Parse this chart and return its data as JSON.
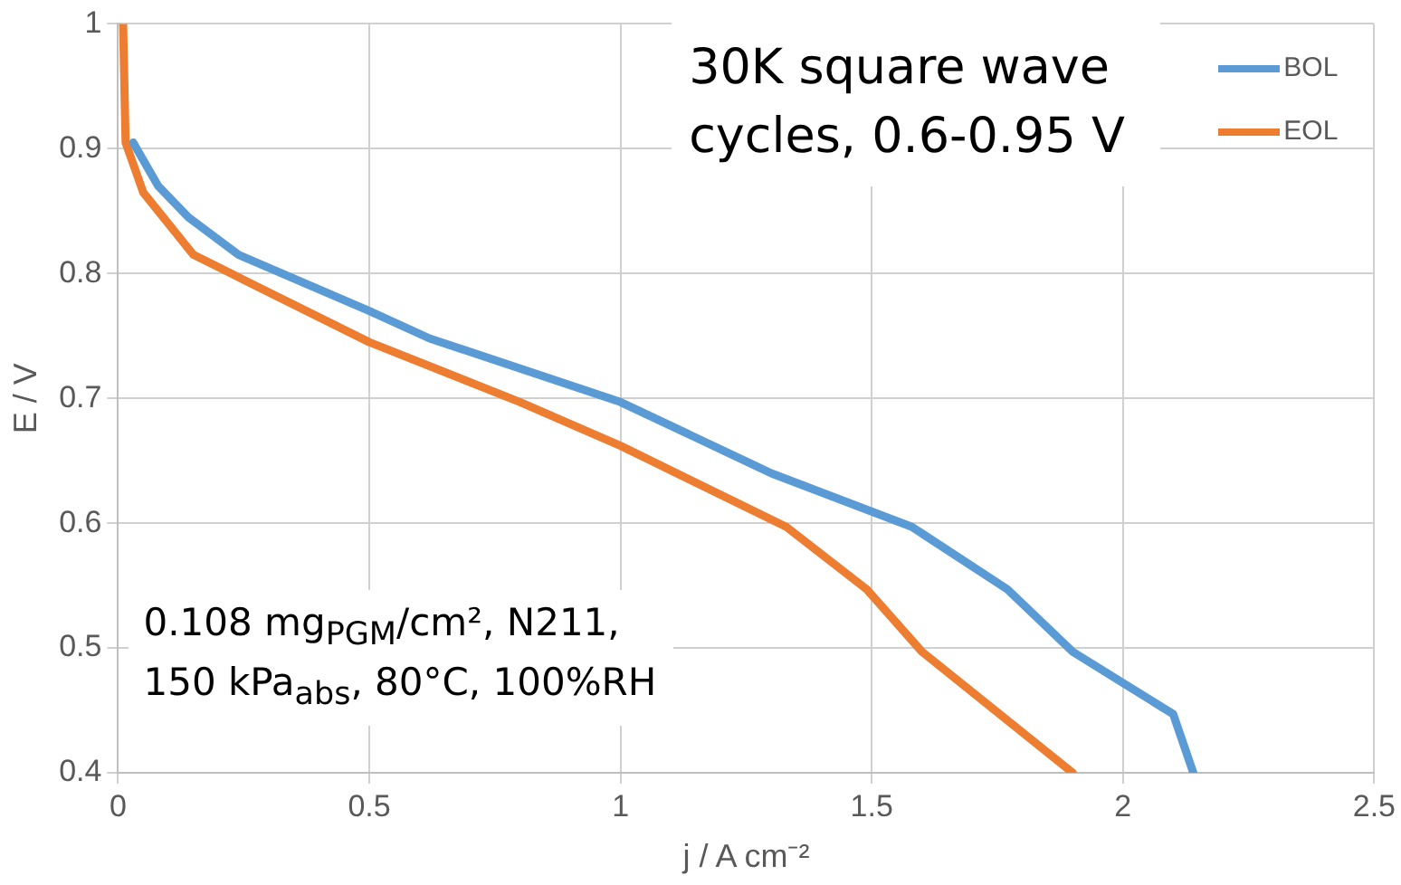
{
  "chart_data": {
    "type": "line",
    "xlabel": "j / A cm⁻²",
    "ylabel": "E / V",
    "annotations": [
      "30K square wave cycles, 0.6-0.95 V",
      "0.108 mg$_{PGM}$/cm², N211, 150 kPa$_{abs}$, 80°C, 100%RH"
    ],
    "xlim": [
      0,
      2.5
    ],
    "xticks": [
      0,
      0.5,
      1,
      1.5,
      2,
      2.5
    ],
    "ylim": [
      0.4,
      1
    ],
    "yticks": [
      0.4,
      0.5,
      0.6,
      0.7,
      0.8,
      0.9,
      1
    ],
    "grid": true,
    "legend": "top right",
    "marker": "none",
    "line_style": "solid",
    "series": [
      {
        "name": "BOL",
        "color": "#5b9bd5",
        "x": [
          0.03,
          0.08,
          0.14,
          0.24,
          0.5,
          0.62,
          1.0,
          1.3,
          1.58,
          1.77,
          1.9,
          2.1,
          2.14
        ],
        "values": [
          0.905,
          0.87,
          0.845,
          0.815,
          0.77,
          0.748,
          0.697,
          0.64,
          0.597,
          0.547,
          0.497,
          0.447,
          0.4
        ]
      },
      {
        "name": "EOL",
        "color": "#ed7d31",
        "x": [
          0.01,
          0.015,
          0.05,
          0.15,
          0.25,
          0.5,
          0.8,
          1.0,
          1.33,
          1.49,
          1.6,
          1.9
        ],
        "values": [
          1.0,
          0.905,
          0.865,
          0.815,
          0.795,
          0.745,
          0.697,
          0.662,
          0.597,
          0.547,
          0.497,
          0.4
        ]
      }
    ]
  }
}
